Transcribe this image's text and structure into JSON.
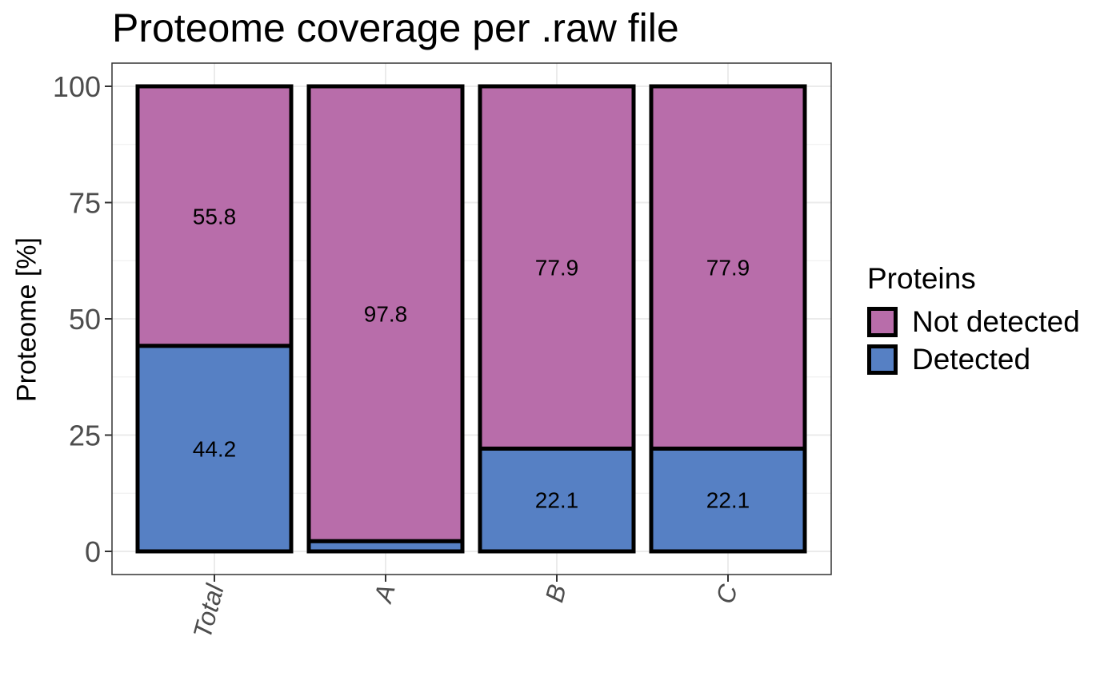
{
  "chart_data": {
    "type": "bar",
    "stacked": true,
    "title": "Proteome coverage per .raw file",
    "xlabel": "",
    "ylabel": "Proteome [%]",
    "ylim": [
      0,
      100
    ],
    "yticks": [
      "0",
      "25",
      "50",
      "75",
      "100"
    ],
    "categories": [
      "Total",
      "A",
      "B",
      "C"
    ],
    "series": [
      {
        "name": "Detected",
        "color": "#5680C4",
        "values": [
          44.2,
          2.2,
          22.1,
          22.1
        ],
        "labels": [
          "44.2",
          "",
          "22.1",
          "22.1"
        ]
      },
      {
        "name": "Not detected",
        "color": "#B86DAA",
        "values": [
          55.8,
          97.8,
          77.9,
          77.9
        ],
        "labels": [
          "55.8",
          "97.8",
          "77.9",
          "77.9"
        ]
      }
    ],
    "grid": true,
    "legend": {
      "title": "Proteins",
      "placement": "right",
      "items": [
        {
          "label": "Not detected",
          "color": "#B86DAA"
        },
        {
          "label": "Detected",
          "color": "#5680C4"
        }
      ]
    }
  }
}
